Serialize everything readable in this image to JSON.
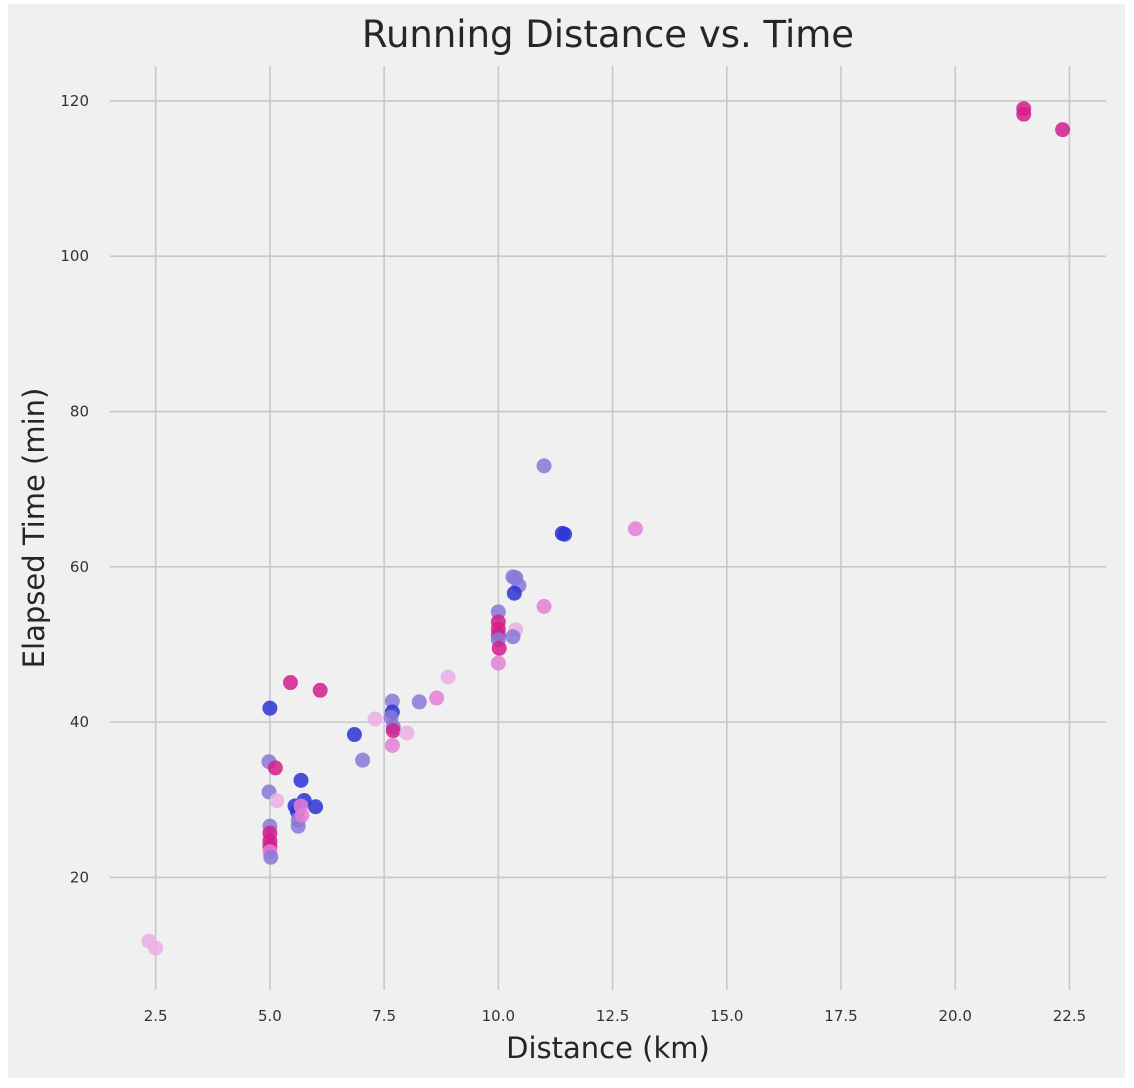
{
  "chart_data": {
    "type": "scatter",
    "title": "Running Distance vs. Time",
    "xlabel": "Distance (km)",
    "ylabel": "Elapsed Time (min)",
    "xlim": [
      1.5,
      23.3
    ],
    "ylim": [
      5.5,
      124.5
    ],
    "xticks": [
      2.5,
      5.0,
      7.5,
      10.0,
      12.5,
      15.0,
      17.5,
      20.0,
      22.5
    ],
    "xtick_labels": [
      "2.5",
      "5.0",
      "7.5",
      "10.0",
      "12.5",
      "15.0",
      "17.5",
      "20.0",
      "22.5"
    ],
    "yticks": [
      20,
      40,
      60,
      80,
      100,
      120
    ],
    "ytick_labels": [
      "20",
      "40",
      "60",
      "80",
      "100",
      "120"
    ],
    "grid": true,
    "colors": {
      "background": "#f0f0f0",
      "grid": "#c8c8c8",
      "blue": "#2d32d2",
      "violet": "#8878d6",
      "magenta": "#d21f8c",
      "pink": "#e47ed6",
      "lightpink": "#ebaee4"
    },
    "points": [
      {
        "x": 2.35,
        "y": 11.8,
        "c": "lightpink"
      },
      {
        "x": 2.5,
        "y": 10.9,
        "c": "lightpink"
      },
      {
        "x": 5.0,
        "y": 41.8,
        "c": "blue"
      },
      {
        "x": 4.98,
        "y": 34.9,
        "c": "violet"
      },
      {
        "x": 4.98,
        "y": 31.0,
        "c": "violet"
      },
      {
        "x": 5.0,
        "y": 26.6,
        "c": "violet"
      },
      {
        "x": 5.0,
        "y": 25.7,
        "c": "magenta"
      },
      {
        "x": 5.0,
        "y": 24.7,
        "c": "magenta"
      },
      {
        "x": 5.0,
        "y": 24.0,
        "c": "magenta"
      },
      {
        "x": 5.0,
        "y": 23.3,
        "c": "pink"
      },
      {
        "x": 5.02,
        "y": 22.6,
        "c": "violet"
      },
      {
        "x": 5.12,
        "y": 34.1,
        "c": "magenta"
      },
      {
        "x": 5.15,
        "y": 29.9,
        "c": "lightpink"
      },
      {
        "x": 5.45,
        "y": 45.1,
        "c": "magenta"
      },
      {
        "x": 5.68,
        "y": 32.5,
        "c": "blue"
      },
      {
        "x": 5.55,
        "y": 29.2,
        "c": "blue"
      },
      {
        "x": 5.6,
        "y": 28.5,
        "c": "blue"
      },
      {
        "x": 5.75,
        "y": 29.9,
        "c": "blue"
      },
      {
        "x": 5.62,
        "y": 27.4,
        "c": "violet"
      },
      {
        "x": 5.62,
        "y": 26.6,
        "c": "violet"
      },
      {
        "x": 5.68,
        "y": 29.2,
        "c": "pink"
      },
      {
        "x": 5.7,
        "y": 28.0,
        "c": "pink"
      },
      {
        "x": 6.0,
        "y": 29.1,
        "c": "blue"
      },
      {
        "x": 6.1,
        "y": 44.1,
        "c": "magenta"
      },
      {
        "x": 6.85,
        "y": 38.4,
        "c": "blue"
      },
      {
        "x": 7.03,
        "y": 35.1,
        "c": "violet"
      },
      {
        "x": 7.3,
        "y": 40.4,
        "c": "lightpink"
      },
      {
        "x": 7.68,
        "y": 42.7,
        "c": "violet"
      },
      {
        "x": 7.68,
        "y": 41.3,
        "c": "blue"
      },
      {
        "x": 7.65,
        "y": 40.6,
        "c": "violet"
      },
      {
        "x": 7.7,
        "y": 39.4,
        "c": "violet"
      },
      {
        "x": 7.7,
        "y": 38.9,
        "c": "magenta"
      },
      {
        "x": 7.68,
        "y": 37.0,
        "c": "pink"
      },
      {
        "x": 8.0,
        "y": 38.6,
        "c": "lightpink"
      },
      {
        "x": 8.27,
        "y": 42.6,
        "c": "violet"
      },
      {
        "x": 8.65,
        "y": 43.1,
        "c": "pink"
      },
      {
        "x": 8.9,
        "y": 45.8,
        "c": "lightpink"
      },
      {
        "x": 10.0,
        "y": 54.2,
        "c": "violet"
      },
      {
        "x": 10.0,
        "y": 52.9,
        "c": "magenta"
      },
      {
        "x": 10.0,
        "y": 52.0,
        "c": "magenta"
      },
      {
        "x": 10.0,
        "y": 51.2,
        "c": "magenta"
      },
      {
        "x": 10.0,
        "y": 50.6,
        "c": "violet"
      },
      {
        "x": 10.02,
        "y": 49.5,
        "c": "magenta"
      },
      {
        "x": 10.0,
        "y": 47.6,
        "c": "pink"
      },
      {
        "x": 10.32,
        "y": 58.7,
        "c": "violet"
      },
      {
        "x": 10.38,
        "y": 58.6,
        "c": "violet"
      },
      {
        "x": 10.45,
        "y": 57.6,
        "c": "violet"
      },
      {
        "x": 10.35,
        "y": 56.6,
        "c": "blue"
      },
      {
        "x": 10.38,
        "y": 51.9,
        "c": "lightpink"
      },
      {
        "x": 10.32,
        "y": 51.0,
        "c": "violet"
      },
      {
        "x": 11.0,
        "y": 73.0,
        "c": "violet"
      },
      {
        "x": 11.0,
        "y": 54.9,
        "c": "pink"
      },
      {
        "x": 11.4,
        "y": 64.3,
        "c": "blue"
      },
      {
        "x": 11.45,
        "y": 64.2,
        "c": "blue"
      },
      {
        "x": 13.0,
        "y": 64.9,
        "c": "pink"
      },
      {
        "x": 21.5,
        "y": 119.0,
        "c": "magenta"
      },
      {
        "x": 21.5,
        "y": 118.3,
        "c": "magenta"
      },
      {
        "x": 22.35,
        "y": 116.3,
        "c": "magenta"
      }
    ]
  }
}
